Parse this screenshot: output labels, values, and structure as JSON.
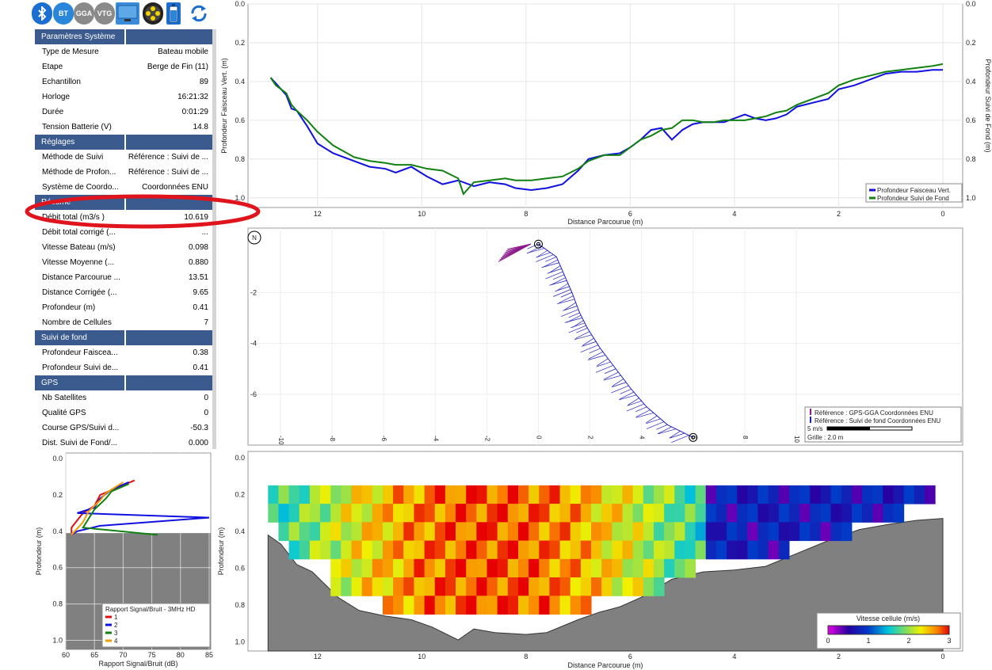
{
  "toolbar": {
    "icons": [
      "bluetooth-icon",
      "bt-icon",
      "gga-icon",
      "vtg-icon",
      "monitor-icon",
      "film-reel-icon",
      "battery-icon",
      "refresh-icon"
    ],
    "bt_label": "BT",
    "gga_label": "GGA",
    "vtg_label": "VTG"
  },
  "params": {
    "sections": [
      {
        "title": "Paramètres Système",
        "rows": [
          {
            "label": "Type de Mesure",
            "value": "Bateau mobile"
          },
          {
            "label": "Etape",
            "value": "Berge de Fin (11)"
          },
          {
            "label": "Echantillon",
            "value": "89"
          },
          {
            "label": "Horloge",
            "value": "16:21:32"
          },
          {
            "label": "Durée",
            "value": "0:01:29"
          },
          {
            "label": "Tension Batterie (V)",
            "value": "14.8"
          }
        ]
      },
      {
        "title": "Réglages",
        "rows": [
          {
            "label": "Méthode de Suivi",
            "value": "Référence : Suivi de ..."
          },
          {
            "label": "Méthode de Profon...",
            "value": "Référence : Suivi de ..."
          },
          {
            "label": "Système de Coordo...",
            "value": "Coordonnées ENU"
          }
        ]
      },
      {
        "title": "Résumé",
        "rows": [
          {
            "label": "Débit total (m3/s )",
            "value": "10.619"
          },
          {
            "label": "Débit total corrigé (...",
            "value": "..."
          },
          {
            "label": "Vitesse Bateau (m/s)",
            "value": "0.098"
          },
          {
            "label": "Vitesse Moyenne (...",
            "value": "0.880"
          },
          {
            "label": "Distance Parcourue ...",
            "value": "13.51"
          },
          {
            "label": "Distance Corrigée (...",
            "value": "9.65"
          },
          {
            "label": "Profondeur (m)",
            "value": "0.41"
          },
          {
            "label": "Nombre de Cellules",
            "value": "7"
          }
        ]
      },
      {
        "title": "Suivi de fond",
        "rows": [
          {
            "label": "Profondeur Faiscea...",
            "value": "0.38"
          },
          {
            "label": "Profondeur Suivi de...",
            "value": "0.41"
          }
        ]
      },
      {
        "title": "GPS",
        "rows": [
          {
            "label": "Nb Satellites",
            "value": "0"
          },
          {
            "label": "Qualité GPS",
            "value": "0"
          },
          {
            "label": "Course GPS/Suivi d...",
            "value": "-50.3"
          },
          {
            "label": "Dist. Suivi de Fond/...",
            "value": "0.000"
          }
        ]
      }
    ],
    "highlight_color": "#e0141c"
  },
  "chart_data": [
    {
      "type": "line",
      "xlabel": "Distance Parcourue (m)",
      "ylabel": "Profondeur Faisceau Vert. (m)",
      "y2label": "Profondeur Suivi de Fond (m)",
      "xlim": [
        13,
        0
      ],
      "ylim": [
        0,
        1.05
      ],
      "xticks": [
        "12",
        "10",
        "8",
        "6",
        "4",
        "2",
        "0"
      ],
      "yticks": [
        "0.0",
        "0.2",
        "0.4",
        "0.6",
        "0.8",
        "1.0"
      ],
      "legend_position": "bottom-right",
      "series": [
        {
          "name": "Profondeur Faisceau Vert.",
          "color": "#1010e0",
          "x": [
            12.9,
            12.8,
            12.7,
            12.6,
            12.5,
            12.4,
            12.2,
            12.0,
            11.7,
            11.3,
            11.0,
            10.7,
            10.5,
            10.2,
            9.9,
            9.6,
            9.3,
            9.0,
            8.7,
            8.4,
            8.2,
            7.9,
            7.6,
            7.3,
            7.0,
            6.8,
            6.5,
            6.2,
            6.0,
            5.8,
            5.6,
            5.4,
            5.2,
            5.0,
            4.8,
            4.6,
            4.4,
            4.2,
            4.0,
            3.8,
            3.6,
            3.4,
            3.2,
            3.0,
            2.8,
            2.5,
            2.2,
            2.0,
            1.7,
            1.4,
            1.1,
            0.8,
            0.5,
            0.2,
            0.0
          ],
          "y": [
            0.38,
            0.41,
            0.44,
            0.47,
            0.54,
            0.55,
            0.63,
            0.72,
            0.77,
            0.81,
            0.84,
            0.85,
            0.87,
            0.84,
            0.89,
            0.93,
            0.91,
            0.94,
            0.92,
            0.93,
            0.95,
            0.96,
            0.95,
            0.93,
            0.86,
            0.8,
            0.78,
            0.77,
            0.74,
            0.7,
            0.65,
            0.64,
            0.7,
            0.65,
            0.62,
            0.61,
            0.61,
            0.61,
            0.59,
            0.57,
            0.59,
            0.6,
            0.59,
            0.57,
            0.53,
            0.51,
            0.49,
            0.44,
            0.42,
            0.39,
            0.36,
            0.35,
            0.35,
            0.34,
            0.34
          ]
        },
        {
          "name": "Profondeur Suivi de Fond",
          "color": "#108010",
          "x": [
            12.9,
            12.8,
            12.7,
            12.6,
            12.5,
            12.4,
            12.2,
            12.0,
            11.7,
            11.3,
            11.0,
            10.7,
            10.5,
            10.2,
            9.9,
            9.6,
            9.3,
            9.2,
            9.0,
            8.7,
            8.4,
            8.2,
            7.9,
            7.6,
            7.3,
            7.0,
            6.8,
            6.5,
            6.2,
            6.0,
            5.8,
            5.6,
            5.4,
            5.2,
            5.0,
            4.8,
            4.6,
            4.4,
            4.2,
            4.0,
            3.8,
            3.6,
            3.4,
            3.2,
            3.0,
            2.8,
            2.5,
            2.2,
            2.0,
            1.7,
            1.4,
            1.1,
            0.8,
            0.5,
            0.2,
            0.0
          ],
          "y": [
            0.38,
            0.42,
            0.44,
            0.46,
            0.52,
            0.55,
            0.6,
            0.66,
            0.73,
            0.79,
            0.81,
            0.82,
            0.83,
            0.83,
            0.85,
            0.86,
            0.9,
            0.98,
            0.92,
            0.91,
            0.9,
            0.91,
            0.91,
            0.9,
            0.89,
            0.85,
            0.81,
            0.78,
            0.78,
            0.74,
            0.7,
            0.68,
            0.65,
            0.64,
            0.6,
            0.6,
            0.61,
            0.61,
            0.6,
            0.6,
            0.6,
            0.59,
            0.58,
            0.56,
            0.55,
            0.52,
            0.49,
            0.46,
            0.42,
            0.39,
            0.37,
            0.35,
            0.34,
            0.33,
            0.32,
            0.31
          ]
        }
      ]
    },
    {
      "type": "scatter",
      "title": "",
      "xticks": [
        "-10",
        "-8",
        "-6",
        "-4",
        "-2",
        "0",
        "2",
        "4",
        "6",
        "8",
        "10"
      ],
      "yticks": [
        "-2",
        "-4",
        "-6"
      ],
      "north_label": "N",
      "legend": [
        {
          "label": "Référence : GPS-GGA Coordonnées ENU",
          "color": "#8b1a8b"
        },
        {
          "label": "Référence : Suivi de fond Coordonnées ENU",
          "color": "#2020c0"
        }
      ],
      "scale_label": "5 m/s",
      "grid_label": "Grille : 2.0 m"
    },
    {
      "type": "line",
      "xlabel": "Rapport Signal/Bruit (dB)",
      "ylabel": "Profondeur (m)",
      "xlim": [
        60,
        85
      ],
      "ylim": [
        0,
        1.05
      ],
      "xticks": [
        "60",
        "65",
        "70",
        "75",
        "80",
        "85"
      ],
      "yticks": [
        "0.0",
        "0.2",
        "0.4",
        "0.6",
        "0.8",
        "1.0"
      ],
      "legend_title": "Rapport Signal/Bruit - 3MHz HD",
      "series": [
        {
          "name": "1",
          "color": "#e01010",
          "x": [
            72,
            69,
            66,
            65,
            63,
            62,
            61,
            61
          ],
          "y": [
            0.12,
            0.16,
            0.2,
            0.26,
            0.3,
            0.34,
            0.38,
            0.41
          ]
        },
        {
          "name": "2",
          "color": "#1010e0",
          "x": [
            71,
            68,
            66,
            65,
            62,
            85,
            66,
            62,
            61
          ],
          "y": [
            0.13,
            0.17,
            0.22,
            0.27,
            0.3,
            0.325,
            0.37,
            0.4,
            0.42
          ]
        },
        {
          "name": "3",
          "color": "#108010",
          "x": [
            71,
            68,
            67,
            65,
            64,
            63,
            76
          ],
          "y": [
            0.14,
            0.18,
            0.22,
            0.28,
            0.33,
            0.38,
            0.42
          ]
        },
        {
          "name": "4",
          "color": "#f0a000",
          "x": [
            70,
            67,
            66,
            64,
            63,
            61
          ],
          "y": [
            0.13,
            0.19,
            0.23,
            0.29,
            0.35,
            0.42
          ]
        }
      ]
    },
    {
      "type": "heatmap",
      "xlabel": "Distance Parcourue (m)",
      "ylabel": "Profondeur (m)",
      "xlim": [
        13,
        0
      ],
      "ylim": [
        0,
        1.05
      ],
      "xticks": [
        "12",
        "10",
        "8",
        "6",
        "4",
        "2",
        "0"
      ],
      "yticks": [
        "0.2",
        "0.4",
        "0.6",
        "0.8",
        "1.0"
      ],
      "colorbar_title": "Vitesse cellule (m/s)",
      "colorbar_ticks": [
        "0",
        "1",
        "2",
        "3"
      ]
    }
  ]
}
